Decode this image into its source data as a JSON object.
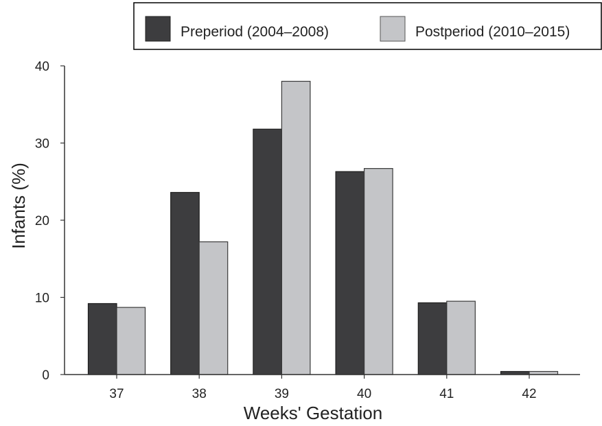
{
  "colors": {
    "pre": "#3d3d3f",
    "post": "#c4c5c8",
    "axis": "#333333",
    "background": "#ffffff"
  },
  "chart_data": {
    "type": "bar",
    "title": "",
    "xlabel": "Weeks' Gestation",
    "ylabel": "Infants (%)",
    "categories": [
      "37",
      "38",
      "39",
      "40",
      "41",
      "42"
    ],
    "series": [
      {
        "name": "Preperiod (2004–2008)",
        "values": [
          9.2,
          23.6,
          31.8,
          26.3,
          9.3,
          0.4
        ]
      },
      {
        "name": "Postperiod (2010–2015)",
        "values": [
          8.7,
          17.2,
          38.0,
          26.7,
          9.5,
          0.4
        ]
      }
    ],
    "ylim": [
      0,
      40
    ],
    "yticks": [
      "0",
      "10",
      "20",
      "30",
      "40"
    ],
    "grid": false,
    "legend_position": "top-right"
  }
}
